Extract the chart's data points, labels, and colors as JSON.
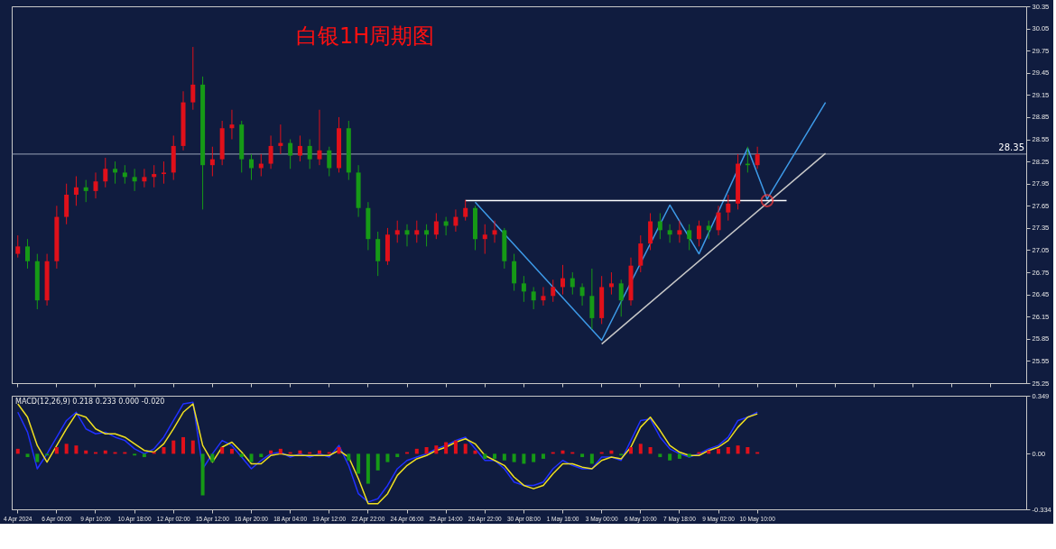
{
  "chart_data": [
    {
      "type": "candlestick",
      "title": "白银1H周期图",
      "categories": [
        null,
        null,
        null,
        null,
        null,
        null,
        null,
        null,
        null,
        null,
        null,
        null,
        null,
        null,
        null,
        null,
        null,
        null,
        null,
        null,
        null,
        null,
        null,
        null,
        null,
        null,
        null,
        null,
        null,
        null,
        null,
        null,
        null,
        null,
        null,
        null,
        null,
        null,
        null,
        null,
        null,
        null,
        null,
        null,
        null,
        null,
        null,
        null,
        null,
        null,
        null,
        null,
        null,
        null,
        null,
        null,
        null,
        null,
        null,
        null,
        null,
        null,
        null,
        null,
        null,
        null,
        null,
        null,
        null,
        null,
        null,
        null,
        null,
        null,
        null,
        null,
        null,
        null,
        null,
        null,
        null,
        null,
        null,
        null,
        null,
        null,
        null,
        null,
        null,
        null,
        null,
        null,
        null,
        null,
        null,
        null,
        null,
        null,
        null,
        null,
        null,
        null,
        null,
        null
      ],
      "ohlc": [
        [
          27.0,
          27.25,
          26.95,
          27.1
        ],
        [
          27.1,
          27.2,
          26.8,
          26.9
        ],
        [
          26.9,
          27.0,
          26.25,
          26.37
        ],
        [
          26.37,
          27.0,
          26.3,
          26.9
        ],
        [
          26.9,
          27.65,
          26.8,
          27.5
        ],
        [
          27.5,
          27.95,
          27.4,
          27.8
        ],
        [
          27.8,
          28.05,
          27.65,
          27.9
        ],
        [
          27.9,
          28.0,
          27.7,
          27.85
        ],
        [
          27.85,
          28.1,
          27.75,
          27.98
        ],
        [
          27.98,
          28.3,
          27.9,
          28.15
        ],
        [
          28.15,
          28.25,
          27.95,
          28.1
        ],
        [
          28.1,
          28.2,
          27.95,
          28.04
        ],
        [
          28.04,
          28.15,
          27.85,
          27.98
        ],
        [
          27.98,
          28.15,
          27.9,
          28.04
        ],
        [
          28.04,
          28.2,
          27.9,
          28.08
        ],
        [
          28.08,
          28.25,
          27.95,
          28.1
        ],
        [
          28.1,
          28.6,
          28.0,
          28.46
        ],
        [
          28.46,
          29.2,
          28.4,
          29.05
        ],
        [
          29.05,
          29.8,
          28.95,
          29.29
        ],
        [
          29.29,
          29.4,
          27.6,
          28.2
        ],
        [
          28.2,
          28.45,
          28.05,
          28.28
        ],
        [
          28.28,
          28.8,
          28.2,
          28.7
        ],
        [
          28.7,
          28.95,
          28.55,
          28.75
        ],
        [
          28.75,
          28.8,
          28.1,
          28.28
        ],
        [
          28.28,
          28.35,
          28.0,
          28.16
        ],
        [
          28.16,
          28.35,
          28.05,
          28.22
        ],
        [
          28.22,
          28.6,
          28.15,
          28.46
        ],
        [
          28.46,
          28.75,
          28.35,
          28.5
        ],
        [
          28.5,
          28.55,
          28.15,
          28.33
        ],
        [
          28.33,
          28.6,
          28.25,
          28.46
        ],
        [
          28.46,
          28.55,
          28.15,
          28.28
        ],
        [
          28.28,
          28.95,
          28.2,
          28.4
        ],
        [
          28.4,
          28.45,
          28.05,
          28.16
        ],
        [
          28.16,
          28.85,
          28.1,
          28.7
        ],
        [
          28.7,
          28.8,
          28.0,
          28.1
        ],
        [
          28.1,
          28.2,
          27.5,
          27.62
        ],
        [
          27.62,
          27.7,
          27.05,
          27.2
        ],
        [
          27.2,
          27.3,
          26.7,
          26.9
        ],
        [
          26.9,
          27.35,
          26.85,
          27.26
        ],
        [
          27.26,
          27.45,
          27.15,
          27.32
        ],
        [
          27.32,
          27.4,
          27.1,
          27.26
        ],
        [
          27.26,
          27.45,
          27.15,
          27.32
        ],
        [
          27.32,
          27.4,
          27.1,
          27.26
        ],
        [
          27.26,
          27.55,
          27.2,
          27.44
        ],
        [
          27.44,
          27.5,
          27.25,
          27.38
        ],
        [
          27.38,
          27.6,
          27.3,
          27.5
        ],
        [
          27.5,
          27.73,
          27.45,
          27.62
        ],
        [
          27.62,
          27.65,
          27.05,
          27.2
        ],
        [
          27.2,
          27.4,
          27.0,
          27.26
        ],
        [
          27.26,
          27.45,
          27.15,
          27.32
        ],
        [
          27.32,
          27.35,
          26.8,
          26.9
        ],
        [
          26.9,
          27.0,
          26.5,
          26.6
        ],
        [
          26.6,
          26.7,
          26.35,
          26.49
        ],
        [
          26.49,
          26.55,
          26.25,
          26.37
        ],
        [
          26.37,
          26.55,
          26.3,
          26.43
        ],
        [
          26.43,
          26.65,
          26.35,
          26.55
        ],
        [
          26.55,
          26.85,
          26.45,
          26.67
        ],
        [
          26.67,
          26.75,
          26.45,
          26.55
        ],
        [
          26.55,
          26.6,
          26.3,
          26.43
        ],
        [
          26.43,
          26.8,
          25.98,
          26.13
        ],
        [
          26.13,
          26.7,
          26.05,
          26.55
        ],
        [
          26.55,
          26.75,
          26.45,
          26.6
        ],
        [
          26.6,
          26.65,
          26.15,
          26.37
        ],
        [
          26.37,
          26.95,
          26.3,
          26.84
        ],
        [
          26.84,
          27.25,
          26.75,
          27.14
        ],
        [
          27.14,
          27.55,
          27.05,
          27.44
        ],
        [
          27.44,
          27.55,
          27.2,
          27.32
        ],
        [
          27.32,
          27.4,
          27.15,
          27.26
        ],
        [
          27.26,
          27.45,
          27.15,
          27.32
        ],
        [
          27.32,
          27.4,
          27.05,
          27.2
        ],
        [
          27.2,
          27.45,
          27.1,
          27.38
        ],
        [
          27.38,
          27.45,
          27.2,
          27.32
        ],
        [
          27.32,
          27.65,
          27.25,
          27.56
        ],
        [
          27.56,
          27.8,
          27.45,
          27.68
        ],
        [
          27.68,
          28.35,
          27.6,
          28.22
        ],
        [
          28.22,
          28.45,
          28.1,
          28.2
        ],
        [
          28.2,
          28.45,
          28.15,
          28.35
        ],
        null,
        null,
        null,
        null,
        null,
        null,
        null,
        null,
        null,
        null,
        null,
        null,
        null,
        null,
        null,
        null,
        null,
        null,
        null,
        null,
        null,
        null,
        null,
        null,
        null,
        null,
        null
      ],
      "series": [
        {
          "type": "line",
          "color": "#3d9ae8",
          "values": [
            null,
            null,
            null,
            null,
            null,
            null,
            null,
            null,
            null,
            null,
            null,
            null,
            null,
            null,
            null,
            null,
            null,
            null,
            null,
            null,
            null,
            null,
            null,
            null,
            null,
            null,
            null,
            null,
            null,
            null,
            null,
            null,
            null,
            null,
            null,
            null,
            null,
            null,
            null,
            null,
            null,
            null,
            null,
            null,
            null,
            null,
            null,
            27.7,
            null,
            null,
            null,
            null,
            null,
            null,
            null,
            null,
            null,
            null,
            null,
            null,
            25.83,
            null,
            null,
            null,
            null,
            null,
            null,
            27.66,
            null,
            null,
            27.0,
            null,
            null,
            null,
            null,
            28.43,
            null,
            27.74,
            null,
            null,
            null,
            null,
            null,
            29.05,
            null,
            null,
            null,
            null,
            null,
            null,
            null,
            null,
            null,
            null,
            null,
            null,
            null,
            null,
            null,
            null,
            null,
            null,
            null,
            null
          ]
        },
        {
          "type": "line",
          "color": "#c8c8c8",
          "values": [
            null,
            null,
            null,
            null,
            null,
            null,
            null,
            null,
            null,
            null,
            null,
            null,
            null,
            null,
            null,
            null,
            null,
            null,
            null,
            null,
            null,
            null,
            null,
            null,
            null,
            null,
            null,
            null,
            null,
            null,
            null,
            null,
            null,
            null,
            null,
            null,
            null,
            null,
            null,
            null,
            null,
            null,
            null,
            null,
            null,
            null,
            null,
            null,
            null,
            null,
            null,
            null,
            null,
            null,
            null,
            null,
            null,
            null,
            null,
            null,
            25.78,
            null,
            null,
            null,
            null,
            null,
            null,
            null,
            null,
            null,
            null,
            null,
            null,
            null,
            null,
            null,
            null,
            null,
            null,
            null,
            null,
            null,
            null,
            28.36,
            null,
            null,
            null,
            null,
            null,
            null,
            null,
            null,
            null,
            null,
            null,
            null,
            null,
            null,
            null,
            null,
            null,
            null,
            null,
            null
          ]
        },
        {
          "type": "line",
          "color": "#ffffff",
          "values": [
            null,
            null,
            null,
            null,
            null,
            null,
            null,
            null,
            null,
            null,
            null,
            null,
            null,
            null,
            null,
            null,
            null,
            null,
            null,
            null,
            null,
            null,
            null,
            null,
            null,
            null,
            null,
            null,
            null,
            null,
            null,
            null,
            null,
            null,
            null,
            null,
            null,
            null,
            null,
            null,
            null,
            null,
            null,
            null,
            null,
            null,
            27.72,
            null,
            null,
            null,
            null,
            null,
            null,
            null,
            null,
            null,
            null,
            null,
            null,
            null,
            null,
            null,
            null,
            null,
            null,
            null,
            null,
            null,
            null,
            null,
            null,
            null,
            null,
            null,
            null,
            null,
            null,
            null,
            null,
            27.72,
            null,
            null,
            null,
            null,
            null,
            null,
            null,
            null,
            null,
            null,
            null,
            null,
            null,
            null,
            null,
            null,
            null,
            null,
            null,
            null,
            null,
            null,
            null,
            null
          ]
        },
        {
          "type": "scatter",
          "color": "#ff3b3b",
          "values": [
            null,
            null,
            null,
            null,
            null,
            null,
            null,
            null,
            null,
            null,
            null,
            null,
            null,
            null,
            null,
            null,
            null,
            null,
            null,
            null,
            null,
            null,
            null,
            null,
            null,
            null,
            null,
            null,
            null,
            null,
            null,
            null,
            null,
            null,
            null,
            null,
            null,
            null,
            null,
            null,
            null,
            null,
            null,
            null,
            null,
            null,
            null,
            null,
            null,
            null,
            null,
            null,
            null,
            null,
            null,
            null,
            null,
            null,
            null,
            null,
            null,
            null,
            null,
            null,
            null,
            null,
            null,
            null,
            null,
            null,
            null,
            null,
            null,
            null,
            null,
            null,
            null,
            27.72,
            null,
            null,
            null,
            null,
            null,
            null,
            null,
            null,
            null,
            null,
            null,
            null,
            null,
            null,
            null,
            null,
            null,
            null,
            null,
            null,
            null,
            null,
            null,
            null,
            null,
            null
          ]
        }
      ],
      "ylim": [
        25.25,
        30.35
      ],
      "yticks": [
        25.25,
        25.55,
        25.85,
        26.15,
        26.45,
        26.75,
        27.05,
        27.35,
        27.65,
        27.95,
        28.25,
        28.55,
        28.85,
        29.15,
        29.45,
        29.75,
        30.05,
        30.35
      ],
      "ref_lines": [
        {
          "axis": "y",
          "value": 28.35,
          "label": "28.35",
          "color": "#9aa4b8"
        }
      ],
      "tick_labels": "y"
    },
    {
      "type": "bar",
      "title": "MACD(12,26,9) 0.218 0.233 0.000 -0.020",
      "categories": [
        "4 Apr 2024",
        null,
        null,
        null,
        "6 Apr 00:00",
        null,
        null,
        null,
        "9 Apr 10:00",
        null,
        null,
        null,
        "10 Apr 18:00",
        null,
        null,
        null,
        "12 Apr 02:00",
        null,
        null,
        null,
        "15 Apr 12:00",
        null,
        null,
        null,
        "16 Apr 20:00",
        null,
        null,
        null,
        "18 Apr 04:00",
        null,
        null,
        null,
        "19 Apr 12:00",
        null,
        null,
        null,
        "22 Apr 22:00",
        null,
        null,
        null,
        "24 Apr 06:00",
        null,
        null,
        null,
        "25 Apr 14:00",
        null,
        null,
        null,
        "26 Apr 22:00",
        null,
        null,
        null,
        "30 Apr 08:00",
        null,
        null,
        null,
        "1 May 16:00",
        null,
        null,
        null,
        "3 May 00:00",
        null,
        null,
        null,
        "6 May 10:00",
        null,
        null,
        null,
        "7 May 18:00",
        null,
        null,
        null,
        "9 May 02:00",
        null,
        null,
        null,
        "10 May 10:00",
        null,
        null,
        null,
        null,
        null,
        null,
        null,
        null,
        null,
        null,
        null,
        null,
        null,
        null,
        null,
        null,
        null,
        null,
        null,
        null,
        null,
        null,
        null,
        null,
        null,
        null,
        null
      ],
      "series": [
        {
          "type": "bar",
          "color": "#e0101a",
          "values": [
            0.03,
            null,
            null,
            null,
            0.04,
            0.06,
            0.05,
            0.02,
            0.01,
            0.02,
            0.01,
            0.01,
            null,
            null,
            0.01,
            0.04,
            0.08,
            0.1,
            0.08,
            null,
            null,
            0.04,
            0.03,
            null,
            null,
            null,
            0.02,
            0.03,
            0.01,
            0.02,
            0.01,
            0.02,
            0.01,
            0.04,
            null,
            null,
            null,
            null,
            null,
            null,
            0.01,
            0.03,
            0.04,
            0.05,
            0.07,
            0.08,
            0.06,
            0.02,
            null,
            null,
            null,
            null,
            null,
            null,
            null,
            0.01,
            0.02,
            0.01,
            null,
            null,
            0.01,
            0.02,
            null,
            0.04,
            0.06,
            0.04,
            null,
            null,
            null,
            null,
            0.01,
            0.02,
            0.03,
            0.04,
            0.05,
            0.04,
            0.01,
            null,
            null,
            null,
            null,
            null,
            null,
            null,
            null,
            null,
            null,
            null,
            null,
            null,
            null,
            null,
            null,
            null,
            null,
            null,
            null,
            null,
            null,
            null,
            null,
            null,
            null,
            null
          ]
        },
        {
          "type": "bar",
          "color": "#169a16",
          "values": [
            null,
            -0.02,
            -0.05,
            -0.01,
            null,
            null,
            null,
            null,
            null,
            null,
            null,
            null,
            -0.01,
            -0.02,
            null,
            null,
            null,
            null,
            null,
            -0.25,
            -0.05,
            null,
            null,
            -0.02,
            -0.05,
            -0.02,
            null,
            null,
            null,
            null,
            null,
            null,
            null,
            null,
            -0.04,
            -0.12,
            -0.18,
            -0.1,
            -0.05,
            -0.02,
            null,
            null,
            null,
            null,
            null,
            null,
            null,
            null,
            -0.03,
            -0.03,
            -0.04,
            -0.05,
            -0.06,
            -0.05,
            -0.03,
            null,
            null,
            null,
            -0.02,
            -0.06,
            null,
            null,
            -0.01,
            null,
            null,
            null,
            -0.02,
            -0.04,
            -0.03,
            -0.02,
            null,
            null,
            null,
            null,
            null,
            null,
            null,
            null,
            null,
            null,
            null,
            null,
            null,
            null,
            null,
            null,
            null,
            null,
            null,
            null,
            null,
            null,
            null,
            null,
            null,
            null,
            null,
            null,
            null,
            null,
            null,
            null,
            null,
            null
          ]
        },
        {
          "type": "line",
          "color": "#2030ff",
          "values": [
            0.25,
            0.13,
            -0.09,
            0.0,
            0.1,
            0.2,
            0.25,
            0.15,
            0.12,
            0.13,
            0.1,
            0.08,
            0.03,
            0.0,
            0.03,
            0.1,
            0.2,
            0.3,
            0.31,
            -0.09,
            0.0,
            0.08,
            0.05,
            -0.02,
            -0.09,
            -0.04,
            0.0,
            0.01,
            -0.02,
            0.0,
            -0.02,
            0.0,
            -0.02,
            0.05,
            -0.07,
            -0.24,
            -0.29,
            -0.27,
            -0.19,
            -0.09,
            -0.04,
            -0.02,
            0.0,
            0.03,
            0.05,
            0.08,
            0.1,
            0.03,
            -0.04,
            -0.04,
            -0.09,
            -0.17,
            -0.19,
            -0.19,
            -0.17,
            -0.09,
            -0.04,
            -0.07,
            -0.09,
            -0.09,
            -0.02,
            -0.02,
            -0.04,
            0.08,
            0.2,
            0.21,
            0.1,
            0.03,
            0.0,
            -0.02,
            0.0,
            0.03,
            0.05,
            0.1,
            0.2,
            0.22,
            0.25,
            null,
            null,
            null,
            null,
            null,
            null,
            null,
            null,
            null,
            null,
            null,
            null,
            null,
            null,
            null,
            null,
            null,
            null,
            null,
            null,
            null,
            null,
            null,
            null,
            null,
            null,
            null
          ]
        },
        {
          "type": "line",
          "color": "#f0e020",
          "values": [
            0.3,
            0.22,
            0.05,
            -0.05,
            0.05,
            0.15,
            0.24,
            0.22,
            0.15,
            0.12,
            0.12,
            0.1,
            0.06,
            0.02,
            0.01,
            0.06,
            0.15,
            0.25,
            0.3,
            0.05,
            -0.05,
            0.04,
            0.07,
            0.01,
            -0.06,
            -0.06,
            -0.01,
            0.0,
            -0.01,
            -0.01,
            -0.01,
            -0.01,
            -0.01,
            0.02,
            -0.02,
            -0.15,
            -0.3,
            -0.3,
            -0.24,
            -0.13,
            -0.07,
            -0.03,
            -0.01,
            0.02,
            0.04,
            0.07,
            0.09,
            0.06,
            -0.01,
            -0.04,
            -0.07,
            -0.14,
            -0.19,
            -0.21,
            -0.19,
            -0.12,
            -0.06,
            -0.06,
            -0.08,
            -0.09,
            -0.04,
            -0.02,
            -0.03,
            0.04,
            0.16,
            0.22,
            0.14,
            0.05,
            0.01,
            -0.01,
            -0.01,
            0.02,
            0.04,
            0.08,
            0.16,
            0.22,
            0.24,
            null,
            null,
            null,
            null,
            null,
            null,
            null,
            null,
            null,
            null,
            null,
            null,
            null,
            null,
            null,
            null,
            null,
            null,
            null,
            null,
            null,
            null,
            null,
            null,
            null,
            null,
            null
          ]
        }
      ],
      "ylim": [
        -0.334,
        0.349
      ],
      "yticks": [
        0.349,
        {
          "value": 0,
          "label": "0.00"
        },
        -0.334
      ],
      "grid": false
    }
  ]
}
